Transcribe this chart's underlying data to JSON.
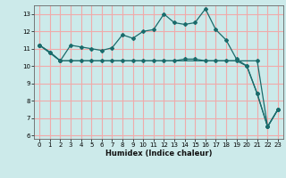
{
  "title": "",
  "xlabel": "Humidex (Indice chaleur)",
  "xlim": [
    -0.5,
    23.5
  ],
  "ylim": [
    5.8,
    13.5
  ],
  "yticks": [
    6,
    7,
    8,
    9,
    10,
    11,
    12,
    13
  ],
  "xticks": [
    0,
    1,
    2,
    3,
    4,
    5,
    6,
    7,
    8,
    9,
    10,
    11,
    12,
    13,
    14,
    15,
    16,
    17,
    18,
    19,
    20,
    21,
    22,
    23
  ],
  "bg_color": "#cceaea",
  "grid_color": "#f0aaaa",
  "line_color": "#1a6b6b",
  "line1_x": [
    0,
    1,
    2,
    3,
    4,
    5,
    6,
    7,
    8,
    9,
    10,
    11,
    12,
    13,
    14,
    15,
    16,
    17,
    18,
    19,
    20,
    21,
    22,
    23
  ],
  "line1_y": [
    11.2,
    10.8,
    10.3,
    11.2,
    11.1,
    11.0,
    10.9,
    11.05,
    11.8,
    11.6,
    12.0,
    12.1,
    13.0,
    12.5,
    12.4,
    12.5,
    13.3,
    12.1,
    11.5,
    10.4,
    10.0,
    8.4,
    6.5,
    7.5
  ],
  "line2_x": [
    0,
    1,
    2,
    3,
    4,
    5,
    6,
    7,
    8,
    9,
    10,
    11,
    12,
    13,
    14,
    15,
    16,
    17,
    18,
    19,
    20,
    21,
    22,
    23
  ],
  "line2_y": [
    11.2,
    10.8,
    10.3,
    10.3,
    10.3,
    10.3,
    10.3,
    10.3,
    10.3,
    10.3,
    10.3,
    10.3,
    10.3,
    10.3,
    10.4,
    10.4,
    10.3,
    10.3,
    10.3,
    10.3,
    10.0,
    8.4,
    6.5,
    7.5
  ],
  "line3_x": [
    0,
    2,
    21,
    22,
    23
  ],
  "line3_y": [
    11.2,
    10.3,
    10.3,
    6.5,
    7.5
  ]
}
